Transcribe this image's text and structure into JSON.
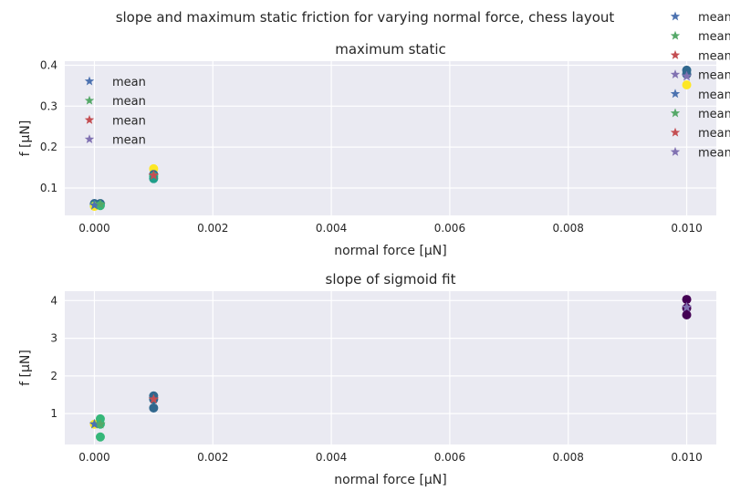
{
  "figure": {
    "suptitle": "slope and maximum static friction for varying normal force, chess layout",
    "background": "#ffffff",
    "axes_facecolor": "#eaeaf2",
    "grid_color": "#ffffff"
  },
  "chart_data": [
    {
      "type": "scatter",
      "title": "maximum static",
      "xlabel": "normal force [μN]",
      "ylabel": "f [μN]",
      "xlim": [
        -0.0005,
        0.0105
      ],
      "ylim": [
        0.033,
        0.41
      ],
      "xticks": [
        0.0,
        0.002,
        0.004,
        0.006,
        0.008,
        0.01
      ],
      "xticklabels": [
        "0.000",
        "0.002",
        "0.004",
        "0.006",
        "0.008",
        "0.010"
      ],
      "yticks": [
        0.1,
        0.2,
        0.3,
        0.4
      ],
      "yticklabels": [
        "0.1",
        "0.2",
        "0.3",
        "0.4"
      ],
      "grid": true,
      "points": [
        {
          "x": 0.0,
          "y": 0.062,
          "color": "#31688e"
        },
        {
          "x": 0.0,
          "y": 0.057,
          "color": "#35b779"
        },
        {
          "x": 0.0,
          "y": 0.055,
          "color": "#fde725"
        },
        {
          "x": 0.0001,
          "y": 0.062,
          "color": "#31688e"
        },
        {
          "x": 0.0001,
          "y": 0.057,
          "color": "#35b779"
        },
        {
          "x": 0.001,
          "y": 0.147,
          "color": "#fde725"
        },
        {
          "x": 0.001,
          "y": 0.133,
          "color": "#31688e"
        },
        {
          "x": 0.001,
          "y": 0.128,
          "color": "#35b779"
        },
        {
          "x": 0.001,
          "y": 0.123,
          "color": "#1f9e89"
        },
        {
          "x": 0.01,
          "y": 0.388,
          "color": "#31688e"
        },
        {
          "x": 0.01,
          "y": 0.378,
          "color": "#31688e"
        },
        {
          "x": 0.01,
          "y": 0.352,
          "color": "#fde725"
        }
      ],
      "means": [
        {
          "x": 0.0,
          "y": 0.058,
          "color": "#4c72b0"
        },
        {
          "x": 0.0001,
          "y": 0.06,
          "color": "#55a868"
        },
        {
          "x": 0.001,
          "y": 0.131,
          "color": "#c44e52"
        },
        {
          "x": 0.01,
          "y": 0.373,
          "color": "#8172b2"
        }
      ],
      "legend": {
        "placement": "upper-left",
        "entries": [
          {
            "label": "mean",
            "color": "#4c72b0"
          },
          {
            "label": "mean",
            "color": "#55a868"
          },
          {
            "label": "mean",
            "color": "#c44e52"
          },
          {
            "label": "mean",
            "color": "#8172b2"
          }
        ]
      }
    },
    {
      "type": "scatter",
      "title": "slope of sigmoid fit",
      "xlabel": "normal force [μN]",
      "ylabel": "f [μN]",
      "xlim": [
        -0.0005,
        0.0105
      ],
      "ylim": [
        0.18,
        4.25
      ],
      "xticks": [
        0.0,
        0.002,
        0.004,
        0.006,
        0.008,
        0.01
      ],
      "xticklabels": [
        "0.000",
        "0.002",
        "0.004",
        "0.006",
        "0.008",
        "0.010"
      ],
      "yticks": [
        1,
        2,
        3,
        4
      ],
      "yticklabels": [
        "1",
        "2",
        "3",
        "4"
      ],
      "grid": true,
      "points": [
        {
          "x": 0.0,
          "y": 0.72,
          "color": "#fde725"
        },
        {
          "x": 0.0001,
          "y": 0.86,
          "color": "#35b779"
        },
        {
          "x": 0.0001,
          "y": 0.72,
          "color": "#35b779"
        },
        {
          "x": 0.0001,
          "y": 0.38,
          "color": "#35b779"
        },
        {
          "x": 0.001,
          "y": 1.47,
          "color": "#31688e"
        },
        {
          "x": 0.001,
          "y": 1.38,
          "color": "#31688e"
        },
        {
          "x": 0.001,
          "y": 1.15,
          "color": "#31688e"
        },
        {
          "x": 0.01,
          "y": 4.03,
          "color": "#440154"
        },
        {
          "x": 0.01,
          "y": 3.8,
          "color": "#440154"
        },
        {
          "x": 0.01,
          "y": 3.62,
          "color": "#440154"
        }
      ],
      "means": [
        {
          "x": 0.0,
          "y": 0.72,
          "color": "#4c72b0"
        },
        {
          "x": 0.0001,
          "y": 0.72,
          "color": "#55a868"
        },
        {
          "x": 0.001,
          "y": 1.38,
          "color": "#c44e52"
        },
        {
          "x": 0.01,
          "y": 3.82,
          "color": "#8172b2"
        }
      ],
      "legend": {
        "placement": "upper-right",
        "entries": [
          {
            "label": "mean",
            "color": "#4c72b0"
          },
          {
            "label": "mean",
            "color": "#55a868"
          },
          {
            "label": "mean",
            "color": "#c44e52"
          },
          {
            "label": "mean",
            "color": "#8172b2"
          },
          {
            "label": "mean",
            "color": "#4c72b0"
          },
          {
            "label": "mean",
            "color": "#55a868"
          },
          {
            "label": "mean",
            "color": "#c44e52"
          },
          {
            "label": "mean",
            "color": "#8172b2"
          }
        ]
      }
    }
  ]
}
